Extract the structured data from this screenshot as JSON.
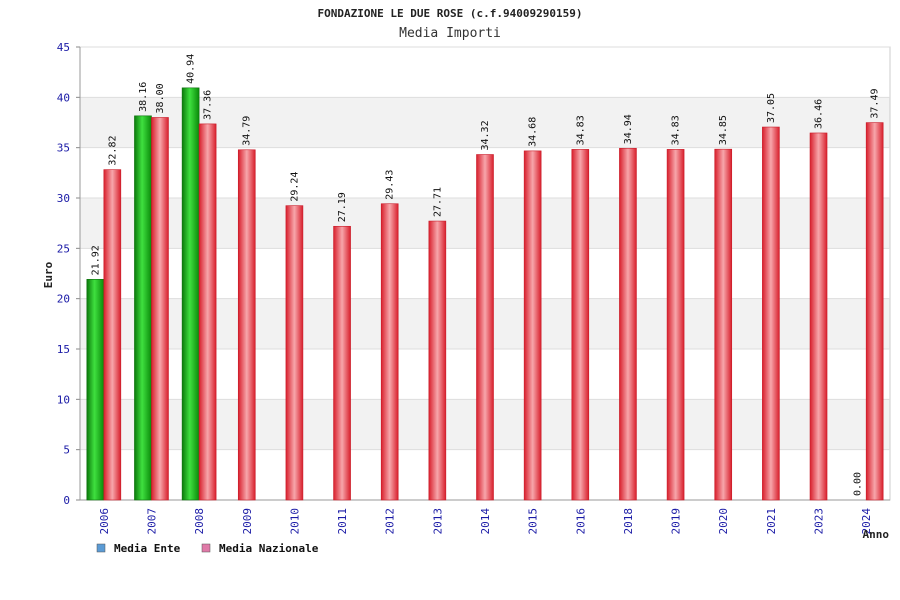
{
  "chart_data": {
    "type": "bar",
    "title": "FONDAZIONE LE DUE ROSE (c.f.94009290159)",
    "subtitle": "Media Importi",
    "ylabel": "Euro",
    "xlabel": "Anno",
    "ylim": [
      0,
      45
    ],
    "yticks": [
      0,
      5,
      10,
      15,
      20,
      25,
      30,
      35,
      40,
      45
    ],
    "grid": true,
    "legend_position": "bottom-left",
    "categories": [
      "2006",
      "2007",
      "2008",
      "2009",
      "2010",
      "2011",
      "2012",
      "2013",
      "2014",
      "2015",
      "2016",
      "2018",
      "2019",
      "2020",
      "2021",
      "2023",
      "2024"
    ],
    "series": [
      {
        "name": "Media Ente",
        "color": "#1db81d",
        "values": [
          21.92,
          38.16,
          40.94,
          null,
          null,
          null,
          null,
          null,
          null,
          null,
          null,
          null,
          null,
          null,
          null,
          null,
          0.0
        ],
        "labels": [
          "21.92",
          "38.16",
          "40.94",
          null,
          null,
          null,
          null,
          null,
          null,
          null,
          null,
          null,
          null,
          null,
          null,
          null,
          "0.00"
        ]
      },
      {
        "name": "Media Nazionale",
        "color": "#e8303a",
        "values": [
          32.82,
          38.0,
          37.36,
          34.79,
          29.24,
          27.19,
          29.43,
          27.71,
          34.32,
          34.68,
          34.83,
          34.94,
          34.83,
          34.85,
          37.05,
          36.46,
          37.49
        ],
        "labels": [
          "32.82",
          "38.00",
          "37.36",
          "34.79",
          "29.24",
          "27.19",
          "29.43",
          "27.71",
          "34.32",
          "34.68",
          "34.83",
          "34.94",
          "34.83",
          "34.85",
          "37.05",
          "36.46",
          "37.49"
        ]
      }
    ],
    "legend": [
      {
        "name": "Media Ente",
        "color": "#5b9bd5"
      },
      {
        "name": "Media Nazionale",
        "color": "#e07aa8"
      }
    ]
  }
}
